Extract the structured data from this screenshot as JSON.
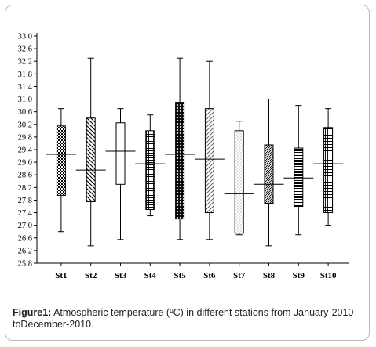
{
  "chart_data": {
    "type": "boxplot",
    "title": "",
    "xlabel": "",
    "ylabel": "",
    "ylim": [
      25.8,
      33.0
    ],
    "yticks": [
      "33.0",
      "32.6",
      "32.2",
      "31.8",
      "31.4",
      "31.0",
      "30.6",
      "30.2",
      "29.8",
      "29.4",
      "29.0",
      "28.6",
      "28.2",
      "27.8",
      "27.4",
      "27.0",
      "26.6",
      "26.2",
      "25.8"
    ],
    "categories": [
      "St1",
      "St2",
      "St3",
      "St4",
      "St5",
      "St6",
      "St7",
      "St8",
      "St9",
      "St10"
    ],
    "boxes": [
      {
        "station": "St1",
        "min": 26.8,
        "q1": 27.95,
        "median": 29.25,
        "q3": 30.15,
        "max": 30.7,
        "pattern": "checker"
      },
      {
        "station": "St2",
        "min": 26.35,
        "q1": 27.75,
        "median": 28.75,
        "q3": 30.4,
        "max": 32.3,
        "pattern": "diag-back"
      },
      {
        "station": "St3",
        "min": 26.55,
        "q1": 28.3,
        "median": 29.35,
        "q3": 30.25,
        "max": 30.7,
        "pattern": "none"
      },
      {
        "station": "St4",
        "min": 27.3,
        "q1": 27.5,
        "median": 28.95,
        "q3": 30.0,
        "max": 30.5,
        "pattern": "grid"
      },
      {
        "station": "St5",
        "min": 26.55,
        "q1": 27.2,
        "median": 29.25,
        "q3": 30.9,
        "max": 32.3,
        "pattern": "diamond"
      },
      {
        "station": "St6",
        "min": 26.55,
        "q1": 27.4,
        "median": 29.1,
        "q3": 30.7,
        "max": 32.2,
        "pattern": "diag-fwd"
      },
      {
        "station": "St7",
        "min": 26.7,
        "q1": 26.75,
        "median": 28.0,
        "q3": 30.0,
        "max": 30.3,
        "pattern": "dots"
      },
      {
        "station": "St8",
        "min": 26.35,
        "q1": 27.7,
        "median": 28.3,
        "q3": 29.55,
        "max": 31.0,
        "pattern": "diag-dense"
      },
      {
        "station": "St9",
        "min": 26.7,
        "q1": 27.6,
        "median": 28.5,
        "q3": 29.45,
        "max": 30.8,
        "pattern": "hlines"
      },
      {
        "station": "St10",
        "min": 27.0,
        "q1": 27.4,
        "median": 28.95,
        "q3": 30.1,
        "max": 30.7,
        "pattern": "vgrid"
      }
    ]
  },
  "caption": {
    "label": "Figure1:",
    "text": " Atmospheric temperature (ºC) in different stations from January-2010 toDecember-2010."
  }
}
